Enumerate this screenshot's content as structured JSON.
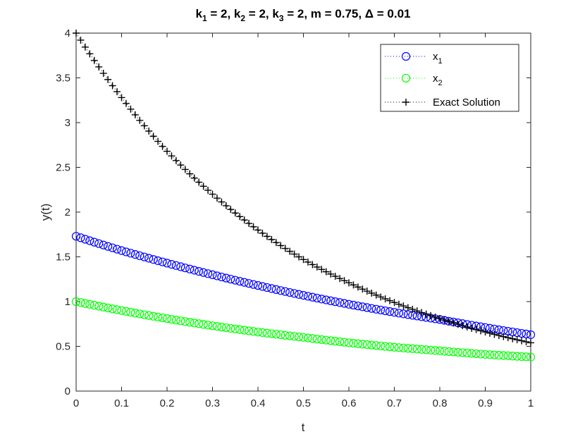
{
  "chart_data": {
    "type": "scatter",
    "title": "k₁ = 2, k₂ = 2, k₃ = 2, m = 0.75, Δ = 0.01",
    "xlabel": "t",
    "ylabel": "y(t)",
    "xlim": [
      0,
      1
    ],
    "ylim": [
      0,
      4
    ],
    "xticks": [
      0,
      0.1,
      0.2,
      0.3,
      0.4,
      0.5,
      0.6,
      0.7,
      0.8,
      0.9,
      1
    ],
    "xtick_labels": [
      "0",
      "0.1",
      "0.2",
      "0.3",
      "0.4",
      "0.5",
      "0.6",
      "0.7",
      "0.8",
      "0.9",
      "1"
    ],
    "yticks": [
      0,
      0.5,
      1,
      1.5,
      2,
      2.5,
      3,
      3.5,
      4
    ],
    "ytick_labels": [
      "0",
      "0.5",
      "1",
      "1.5",
      "2",
      "2.5",
      "3",
      "3.5",
      "4"
    ],
    "grid": false,
    "legend_position": "top-right",
    "x": [
      0,
      0.1,
      0.2,
      0.3,
      0.4,
      0.5,
      0.6,
      0.7,
      0.8,
      0.9,
      1
    ],
    "series": [
      {
        "name": "x",
        "name_sub": "1",
        "marker": "circle",
        "color": "#0000ff",
        "values": [
          1.73,
          1.57,
          1.43,
          1.3,
          1.18,
          1.07,
          0.97,
          0.88,
          0.8,
          0.71,
          0.63
        ]
      },
      {
        "name": "x",
        "name_sub": "2",
        "marker": "circle",
        "color": "#00ff00",
        "values": [
          1.0,
          0.9,
          0.81,
          0.73,
          0.66,
          0.6,
          0.54,
          0.49,
          0.45,
          0.41,
          0.38
        ]
      },
      {
        "name": "Exact Solution",
        "marker": "plus",
        "color": "#000000",
        "values": [
          4.0,
          3.28,
          2.68,
          2.2,
          1.8,
          1.47,
          1.21,
          0.99,
          0.81,
          0.66,
          0.54
        ]
      }
    ]
  }
}
